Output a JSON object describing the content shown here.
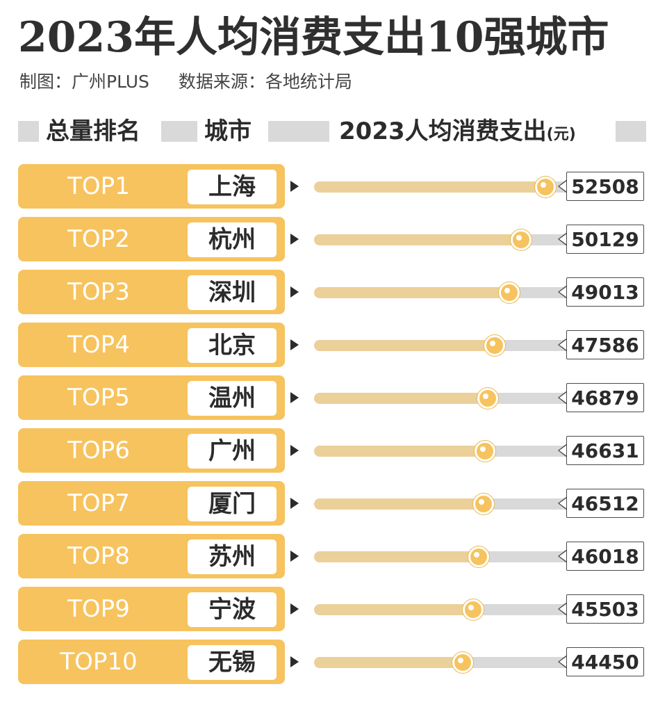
{
  "title": "2023年人均消费支出10强城市",
  "credits": {
    "maker": "制图：广州PLUS",
    "source": "数据来源：各地统计局"
  },
  "headers": {
    "rank": "总量排名",
    "city": "城市",
    "value": "2023人均消费支出",
    "unit": "(元)"
  },
  "colors": {
    "accent": "#f6c35e",
    "bar_fill": "#ecd09a",
    "track": "#d9d9d9"
  },
  "chart_data": {
    "type": "bar",
    "title": "2023年人均消费支出10强城市",
    "ylabel": "2023人均消费支出(元)",
    "categories": [
      "上海",
      "杭州",
      "深圳",
      "北京",
      "温州",
      "广州",
      "厦门",
      "苏州",
      "宁波",
      "无锡"
    ],
    "ranks": [
      "TOP1",
      "TOP2",
      "TOP3",
      "TOP4",
      "TOP5",
      "TOP6",
      "TOP7",
      "TOP8",
      "TOP9",
      "TOP10"
    ],
    "values": [
      52508,
      50129,
      49013,
      47586,
      46879,
      46631,
      46512,
      46018,
      45503,
      44450
    ],
    "value_labels": [
      "52508",
      "50129",
      "49013",
      "47586",
      "46879",
      "46631",
      "46512",
      "46018",
      "45503",
      "44450"
    ],
    "ylim": [
      30000,
      55000
    ],
    "orientation": "horizontal"
  }
}
